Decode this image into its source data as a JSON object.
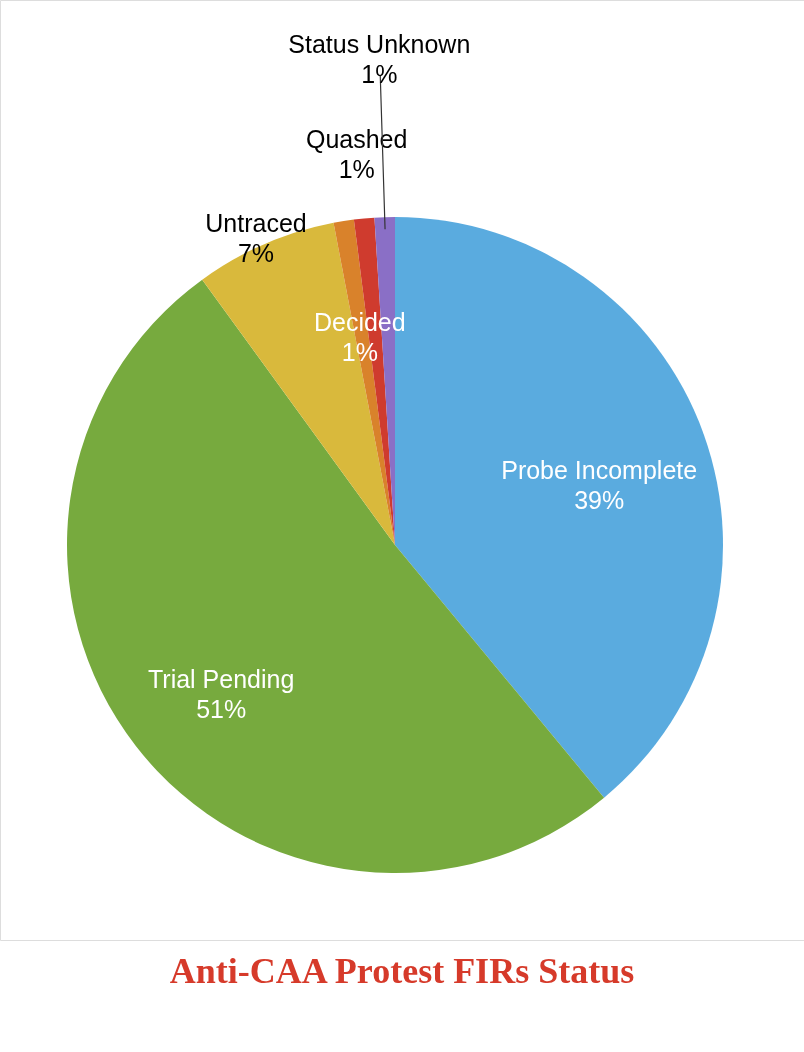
{
  "chart_data": {
    "type": "pie",
    "title": "Anti-CAA Protest FIRs Status",
    "categories": [
      "Probe Incomplete",
      "Trial Pending",
      "Untraced",
      "Decided",
      "Quashed",
      "Status Unknown"
    ],
    "values": [
      39,
      51,
      7,
      1,
      1,
      1
    ],
    "value_labels": [
      "39%",
      "51%",
      "7%",
      "1%",
      "1%",
      "1%"
    ],
    "colors": [
      "#5aabdf",
      "#77aa3e",
      "#d9b93c",
      "#d9822b",
      "#cf3b2e",
      "#8a6fc6"
    ]
  }
}
